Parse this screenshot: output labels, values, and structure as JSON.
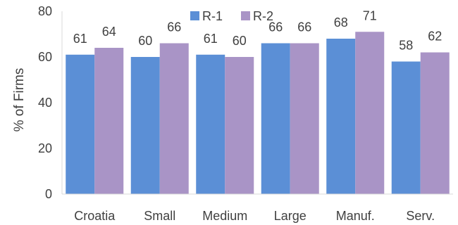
{
  "chart_data": {
    "type": "bar",
    "title": "",
    "xlabel": "",
    "ylabel": "% of Firms",
    "categories": [
      "Croatia",
      "Small",
      "Medium",
      "Large",
      "Manuf.",
      "Serv."
    ],
    "series": [
      {
        "name": "R-1",
        "color": "#5B8FD6",
        "values": [
          61,
          60,
          61,
          66,
          68,
          58
        ]
      },
      {
        "name": "R-2",
        "color": "#A994C6",
        "values": [
          64,
          66,
          60,
          66,
          71,
          62
        ]
      }
    ],
    "data_labels": [
      [
        "61",
        "60",
        "61",
        "66",
        "68",
        "58"
      ],
      [
        "64",
        "66",
        "60",
        "66",
        "71",
        "62"
      ]
    ],
    "ylim": [
      0,
      80
    ],
    "yticks": [
      0,
      20,
      40,
      60,
      80
    ],
    "ytick_labels": [
      "0",
      "20",
      "40",
      "60",
      "80"
    ],
    "grid": false,
    "legend_position": "top-center"
  }
}
